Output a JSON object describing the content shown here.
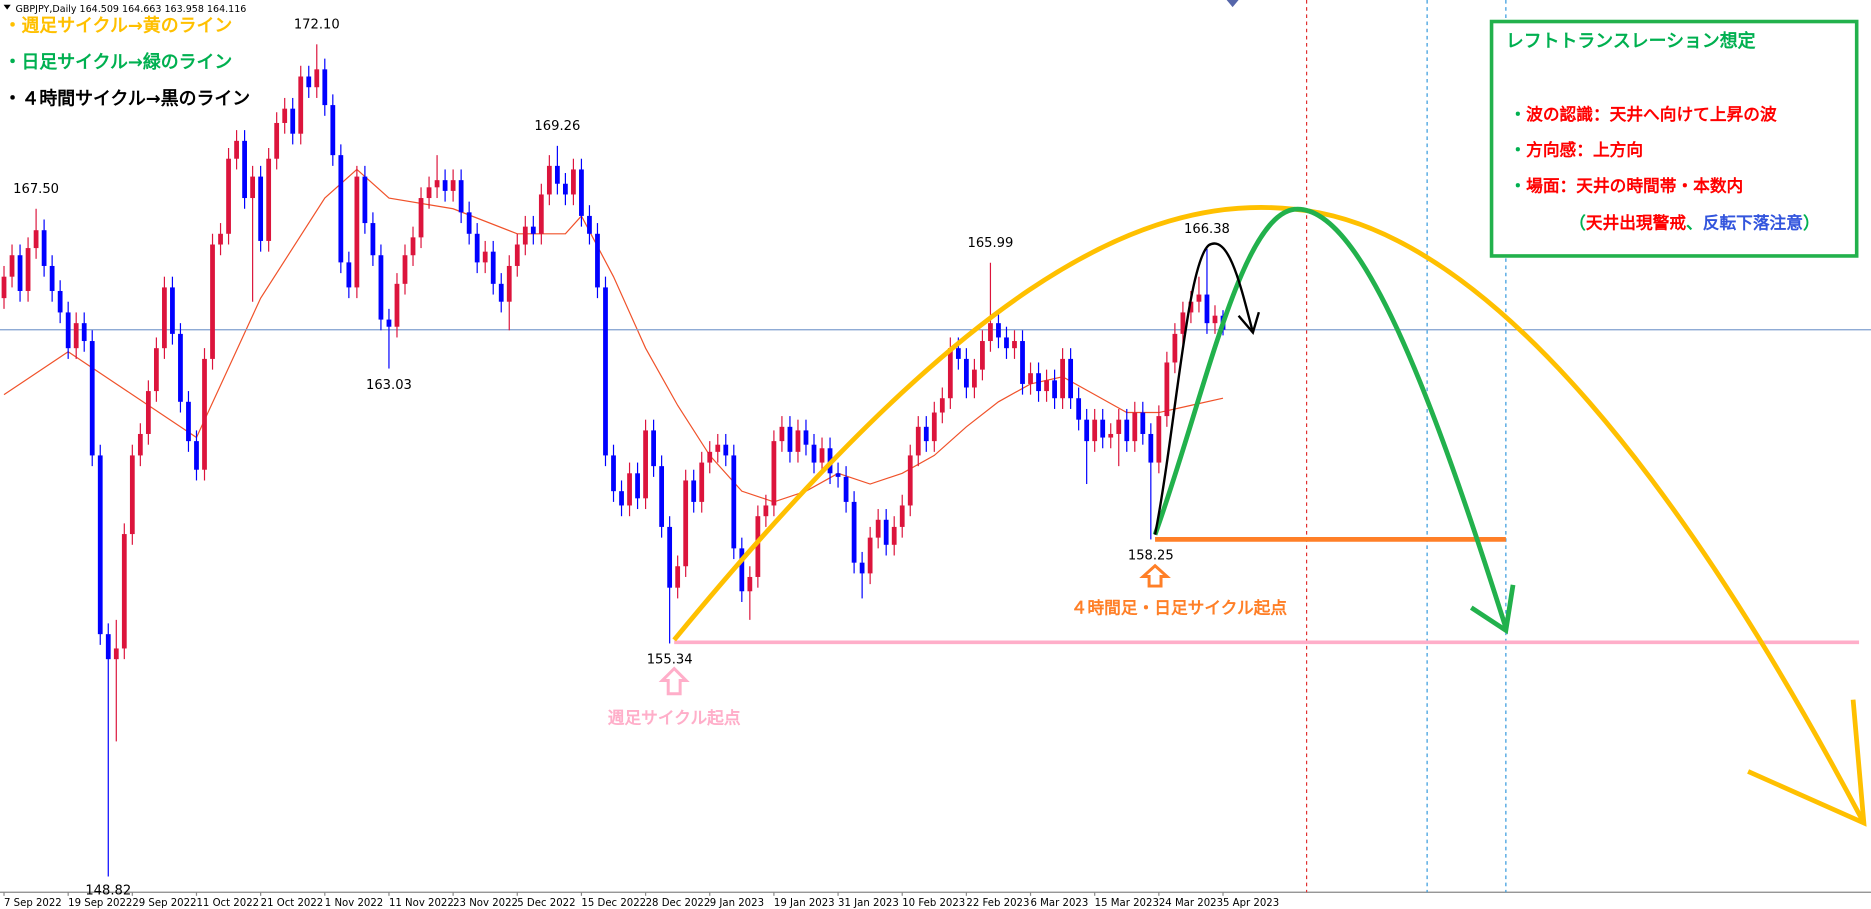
{
  "chart_data": {
    "type": "candlestick",
    "header": "GBPJPY,Daily  164.509 164.663 163.958 164.116",
    "up_color": "#dc143c",
    "down_color": "#0000ff",
    "price_line_color": "#7f9fcf",
    "xlim": [
      -0.5,
      232.8
    ],
    "ylim": [
      148.38,
      173.34
    ],
    "xticks": [
      {
        "value": 0,
        "label": "7 Sep 2022"
      },
      {
        "value": 8,
        "label": "19 Sep 2022"
      },
      {
        "value": 16,
        "label": "29 Sep 2022"
      },
      {
        "value": 24,
        "label": "11 Oct 2022"
      },
      {
        "value": 32,
        "label": "21 Oct 2022"
      },
      {
        "value": 40,
        "label": "1 Nov 2022"
      },
      {
        "value": 48,
        "label": "11 Nov 2022"
      },
      {
        "value": 56,
        "label": "23 Nov 2022"
      },
      {
        "value": 64,
        "label": "5 Dec 2022"
      },
      {
        "value": 72,
        "label": "15 Dec 2022"
      },
      {
        "value": 80,
        "label": "28 Dec 2022"
      },
      {
        "value": 88,
        "label": "9 Jan 2023"
      },
      {
        "value": 96,
        "label": "19 Jan 2023"
      },
      {
        "value": 104,
        "label": "31 Jan 2023"
      },
      {
        "value": 112,
        "label": "10 Feb 2023"
      },
      {
        "value": 120,
        "label": "22 Feb 2023"
      },
      {
        "value": 128,
        "label": "6 Mar 2023"
      },
      {
        "value": 136,
        "label": "15 Mar 2023"
      },
      {
        "value": 144,
        "label": "24 Mar 2023"
      },
      {
        "value": 152,
        "label": "5 Apr 2023"
      }
    ],
    "open": [
      165.0,
      165.6,
      166.2,
      165.2,
      166.4,
      166.9,
      165.9,
      165.2,
      164.6,
      163.6,
      164.3,
      163.8,
      160.6,
      155.6,
      154.9,
      155.2,
      158.4,
      160.6,
      161.2,
      162.4,
      163.6,
      165.3,
      164.0,
      162.1,
      161.0,
      160.2,
      163.3,
      166.5,
      166.8,
      168.9,
      169.4,
      167.8,
      168.4,
      166.6,
      168.9,
      169.9,
      170.3,
      169.6,
      171.2,
      170.9,
      171.4,
      170.4,
      169.0,
      166.0,
      165.3,
      168.4,
      167.1,
      166.2,
      164.4,
      164.2,
      165.4,
      166.2,
      166.7,
      167.8,
      168.1,
      168.3,
      168.0,
      168.3,
      167.4,
      166.8,
      166.0,
      166.3,
      165.4,
      164.9,
      165.9,
      166.5,
      167.0,
      166.8,
      167.9,
      168.7,
      168.2,
      167.9,
      168.6,
      167.3,
      166.8,
      165.3,
      160.6,
      159.6,
      159.2,
      160.1,
      159.4,
      161.3,
      160.3,
      158.6,
      156.9,
      157.5,
      159.9,
      159.3,
      160.4,
      160.7,
      160.9,
      160.6,
      158.0,
      156.8,
      157.2,
      158.9,
      159.2,
      161.0,
      161.4,
      160.7,
      161.3,
      160.9,
      160.4,
      160.8,
      160.1,
      160.0,
      159.3,
      157.6,
      157.3,
      158.3,
      158.8,
      158.1,
      158.6,
      159.2,
      160.6,
      161.4,
      161.0,
      161.8,
      162.2,
      163.6,
      163.3,
      162.5,
      163.0,
      163.8,
      164.3,
      163.9,
      163.6,
      163.8,
      162.6,
      162.9,
      162.4,
      162.7,
      162.2,
      163.3,
      162.2,
      161.6,
      161.0,
      161.6,
      161.1,
      161.2,
      161.6,
      161.0,
      161.8,
      161.2,
      160.4,
      161.7,
      163.2,
      164.0,
      164.6,
      164.9,
      165.1,
      164.3,
      164.509
    ],
    "high": [
      165.9,
      166.5,
      166.5,
      166.7,
      167.5,
      167.2,
      166.2,
      165.5,
      164.9,
      164.6,
      164.6,
      164.1,
      160.9,
      155.9,
      156.0,
      158.7,
      160.9,
      161.5,
      162.7,
      163.9,
      165.6,
      165.6,
      164.3,
      162.4,
      161.3,
      163.6,
      166.8,
      167.1,
      169.2,
      169.7,
      169.7,
      168.7,
      168.7,
      169.2,
      170.2,
      170.6,
      170.6,
      171.5,
      171.5,
      172.1,
      171.7,
      170.7,
      169.3,
      166.3,
      168.7,
      168.7,
      167.4,
      166.5,
      164.7,
      165.7,
      166.5,
      167.0,
      168.1,
      168.4,
      169.0,
      168.6,
      168.6,
      168.6,
      167.7,
      167.1,
      166.6,
      166.6,
      165.7,
      166.2,
      166.8,
      167.3,
      167.3,
      168.2,
      169.0,
      169.26,
      168.5,
      168.9,
      168.9,
      167.6,
      167.1,
      165.6,
      160.9,
      159.9,
      160.4,
      160.4,
      161.6,
      161.6,
      160.6,
      158.9,
      157.8,
      160.2,
      160.2,
      160.7,
      161.0,
      161.2,
      161.2,
      160.9,
      158.3,
      157.5,
      159.2,
      159.5,
      161.3,
      161.7,
      161.7,
      161.6,
      161.6,
      161.2,
      161.1,
      161.1,
      160.4,
      160.3,
      159.6,
      157.9,
      158.6,
      159.1,
      159.1,
      158.9,
      159.5,
      160.9,
      161.7,
      161.7,
      162.1,
      162.5,
      163.9,
      163.9,
      163.6,
      163.3,
      164.1,
      165.99,
      164.6,
      164.2,
      164.1,
      164.1,
      163.2,
      163.2,
      163.0,
      163.0,
      163.6,
      163.6,
      162.5,
      161.9,
      161.9,
      161.9,
      161.5,
      161.9,
      161.9,
      162.1,
      162.1,
      161.5,
      162.0,
      163.5,
      164.3,
      164.9,
      165.2,
      165.6,
      166.38,
      164.8,
      164.663
    ],
    "low": [
      164.7,
      165.3,
      164.9,
      164.9,
      166.1,
      165.6,
      164.9,
      164.3,
      163.3,
      163.3,
      163.5,
      160.3,
      155.3,
      148.82,
      152.6,
      154.9,
      158.1,
      160.3,
      160.9,
      162.1,
      163.3,
      163.7,
      161.8,
      160.7,
      159.9,
      159.9,
      163.0,
      166.2,
      166.5,
      168.6,
      167.5,
      164.9,
      166.3,
      166.3,
      168.6,
      169.6,
      169.3,
      169.3,
      170.6,
      170.6,
      170.1,
      168.7,
      165.7,
      165.0,
      165.0,
      166.8,
      165.9,
      164.1,
      163.03,
      163.9,
      165.1,
      165.9,
      166.4,
      167.5,
      167.8,
      167.7,
      167.7,
      167.1,
      166.5,
      165.7,
      165.7,
      165.1,
      164.6,
      164.1,
      165.6,
      166.2,
      166.5,
      166.5,
      167.6,
      167.9,
      167.6,
      167.6,
      167.0,
      166.5,
      165.0,
      160.3,
      159.3,
      158.9,
      158.9,
      159.1,
      159.1,
      160.0,
      158.3,
      155.34,
      156.6,
      157.2,
      159.0,
      159.0,
      160.1,
      160.4,
      160.3,
      157.7,
      156.5,
      156.0,
      156.9,
      158.6,
      158.9,
      160.7,
      160.4,
      160.4,
      160.6,
      160.1,
      160.1,
      159.8,
      159.7,
      159.0,
      157.3,
      156.6,
      157.0,
      158.0,
      157.8,
      157.8,
      158.3,
      158.9,
      160.3,
      160.7,
      160.7,
      161.5,
      161.9,
      163.0,
      162.2,
      162.2,
      162.7,
      163.5,
      163.6,
      163.3,
      163.3,
      162.3,
      162.3,
      162.1,
      162.1,
      161.9,
      161.9,
      161.9,
      161.3,
      159.8,
      160.7,
      160.8,
      160.8,
      160.3,
      160.7,
      160.7,
      160.9,
      158.25,
      160.1,
      161.4,
      162.9,
      163.7,
      164.3,
      164.6,
      164.0,
      164.0,
      163.958
    ],
    "close": [
      165.6,
      166.2,
      165.2,
      166.4,
      166.9,
      165.9,
      165.2,
      164.6,
      163.6,
      164.3,
      163.8,
      160.6,
      155.6,
      154.9,
      155.2,
      158.4,
      160.6,
      161.2,
      162.4,
      163.6,
      165.3,
      164.0,
      162.1,
      161.0,
      160.2,
      163.3,
      166.5,
      166.8,
      168.9,
      169.4,
      167.8,
      168.4,
      166.6,
      168.9,
      169.9,
      170.3,
      169.6,
      171.2,
      170.9,
      171.4,
      170.4,
      169.0,
      166.0,
      165.3,
      168.4,
      167.1,
      166.2,
      164.4,
      164.2,
      165.4,
      166.2,
      166.7,
      167.8,
      168.1,
      168.3,
      168.0,
      168.3,
      167.4,
      166.8,
      166.0,
      166.3,
      165.4,
      164.9,
      165.9,
      166.5,
      167.0,
      166.8,
      167.9,
      168.7,
      168.2,
      167.9,
      168.6,
      167.3,
      166.8,
      165.3,
      160.6,
      159.6,
      159.2,
      160.1,
      159.4,
      161.3,
      160.3,
      158.6,
      156.9,
      157.5,
      159.9,
      159.3,
      160.4,
      160.7,
      160.9,
      160.6,
      158.0,
      156.8,
      157.2,
      158.9,
      159.2,
      161.0,
      161.4,
      160.7,
      161.3,
      160.9,
      160.4,
      160.8,
      160.1,
      160.0,
      159.3,
      157.6,
      157.3,
      158.3,
      158.8,
      158.1,
      158.6,
      159.2,
      160.6,
      161.4,
      161.0,
      161.8,
      162.2,
      163.6,
      163.3,
      162.5,
      163.0,
      163.8,
      164.3,
      163.9,
      163.6,
      163.8,
      162.6,
      162.9,
      162.4,
      162.7,
      162.2,
      163.3,
      162.2,
      161.6,
      161.0,
      161.6,
      161.1,
      161.2,
      161.6,
      161.0,
      161.8,
      161.2,
      160.4,
      161.7,
      163.2,
      164.0,
      164.6,
      164.9,
      165.1,
      164.3,
      164.509,
      164.116
    ],
    "ma": {
      "color": "#f0522a",
      "x": [
        0,
        8,
        16,
        24,
        32,
        40,
        44,
        48,
        56,
        64,
        70,
        72,
        76,
        80,
        84,
        88,
        92,
        96,
        100,
        104,
        108,
        112,
        116,
        120,
        124,
        128,
        132,
        136,
        140,
        144,
        148,
        152
      ],
      "values": [
        162.3,
        163.5,
        162.3,
        161.1,
        165.0,
        167.8,
        168.6,
        167.8,
        167.5,
        166.8,
        166.8,
        167.3,
        165.6,
        163.6,
        162.0,
        160.6,
        159.6,
        159.3,
        159.6,
        160.1,
        159.8,
        160.1,
        160.6,
        161.4,
        162.1,
        162.6,
        162.8,
        162.3,
        161.8,
        161.8,
        162.0,
        162.2
      ]
    },
    "high_labels": [
      {
        "value": 167.5,
        "label": "167.50"
      },
      {
        "value": 172.1,
        "label": "172.10"
      },
      {
        "value": 169.26,
        "label": "169.26"
      },
      {
        "value": 165.99,
        "label": "165.99"
      },
      {
        "value": 166.38,
        "label": "166.38"
      }
    ],
    "low_labels": [
      {
        "value": 163.03,
        "label": "163.03"
      },
      {
        "value": 148.82,
        "label": "148.82"
      },
      {
        "value": 155.34,
        "label": "155.34"
      },
      {
        "value": 158.25,
        "label": "158.25"
      }
    ],
    "legend": [
      {
        "text": "・週足サイクル→黄のライン",
        "color": "#ffc000"
      },
      {
        "text": "・日足サイクル→緑のライン",
        "color": "#00b050"
      },
      {
        "text": "・４時間サイクル→黒のライン",
        "color": "#000000"
      }
    ],
    "annotations": [
      {
        "text": "週足サイクル起点",
        "color": "#ffaec9"
      },
      {
        "text": "４時間足・日足サイクル起点",
        "color": "#ff7f27"
      }
    ],
    "note_box": {
      "title": "レフトトランスレーション想定",
      "title_color": "#00b050",
      "lines": [
        [
          {
            "text": "・",
            "color": "#00b050"
          },
          {
            "text": "波の認識：天井へ向けて上昇の波",
            "color": "#ff0000"
          }
        ],
        [
          {
            "text": "・",
            "color": "#00b050"
          },
          {
            "text": "方向感：上方向",
            "color": "#ff0000"
          }
        ],
        [
          {
            "text": "・",
            "color": "#00b050"
          },
          {
            "text": "場面：天井の時間帯・本数内",
            "color": "#ff0000"
          }
        ],
        [
          {
            "text": "（",
            "color": "#00b050"
          },
          {
            "text": "天井出現警戒",
            "color": "#ff0000"
          },
          {
            "text": "、",
            "color": "#00b050"
          },
          {
            "text": "反転下落注意",
            "color": "#3355dd"
          },
          {
            "text": "）",
            "color": "#00b050"
          }
        ]
      ]
    }
  }
}
